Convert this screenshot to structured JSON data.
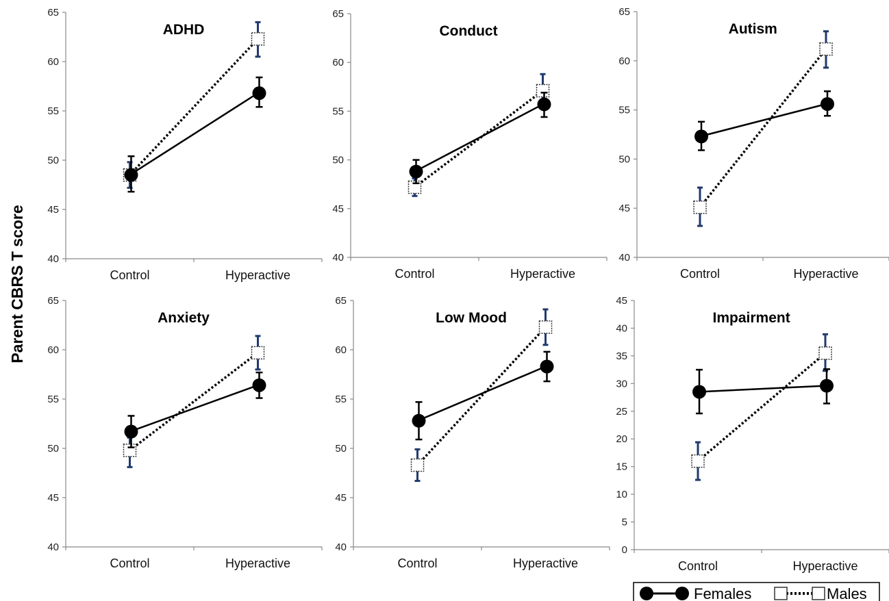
{
  "chart_data": {
    "ylabel": "Parent CBRS T score",
    "legend": {
      "placement": "bottom-right",
      "entries": [
        {
          "name": "Females",
          "color": "#000000",
          "marker": "filled-circle",
          "line": "solid"
        },
        {
          "name": "Males",
          "color": "#1f3a6e",
          "marker": "open-square",
          "line": "dotted"
        }
      ]
    },
    "panels": [
      {
        "type": "line",
        "title": "ADHD",
        "categories": [
          "Control",
          "Hyperactive"
        ],
        "ylim": [
          40,
          65
        ],
        "yticks": [
          40,
          45,
          50,
          55,
          60,
          65
        ],
        "series": [
          {
            "name": "Females",
            "values": [
              48.5,
              56.8
            ],
            "err_low": [
              46.8,
              55.4
            ],
            "err_high": [
              50.4,
              58.4
            ]
          },
          {
            "name": "Males",
            "values": [
              48.5,
              62.3
            ],
            "err_low": [
              47.2,
              60.5
            ],
            "err_high": [
              49.8,
              64.0
            ]
          }
        ]
      },
      {
        "type": "line",
        "title": "Conduct",
        "categories": [
          "Control",
          "Hyperactive"
        ],
        "ylim": [
          40,
          65
        ],
        "yticks": [
          40,
          45,
          50,
          55,
          60,
          65
        ],
        "series": [
          {
            "name": "Females",
            "values": [
              48.8,
              55.7
            ],
            "err_low": [
              47.6,
              54.4
            ],
            "err_high": [
              50.0,
              56.9
            ]
          },
          {
            "name": "Males",
            "values": [
              47.2,
              57.1
            ],
            "err_low": [
              46.3,
              55.4
            ],
            "err_high": [
              48.1,
              58.8
            ]
          }
        ]
      },
      {
        "type": "line",
        "title": "Autism",
        "categories": [
          "Control",
          "Hyperactive"
        ],
        "ylim": [
          40,
          65
        ],
        "yticks": [
          40,
          45,
          50,
          55,
          60,
          65
        ],
        "series": [
          {
            "name": "Females",
            "values": [
              52.3,
              55.6
            ],
            "err_low": [
              50.9,
              54.4
            ],
            "err_high": [
              53.8,
              56.9
            ]
          },
          {
            "name": "Males",
            "values": [
              45.1,
              61.2
            ],
            "err_low": [
              43.2,
              59.3
            ],
            "err_high": [
              47.1,
              63.0
            ]
          }
        ]
      },
      {
        "type": "line",
        "title": "Anxiety",
        "categories": [
          "Control",
          "Hyperactive"
        ],
        "ylim": [
          40,
          65
        ],
        "yticks": [
          40,
          45,
          50,
          55,
          60,
          65
        ],
        "series": [
          {
            "name": "Females",
            "values": [
              51.7,
              56.4
            ],
            "err_low": [
              50.1,
              55.1
            ],
            "err_high": [
              53.3,
              57.7
            ]
          },
          {
            "name": "Males",
            "values": [
              49.8,
              59.7
            ],
            "err_low": [
              48.1,
              58.0
            ],
            "err_high": [
              51.1,
              61.4
            ]
          }
        ]
      },
      {
        "type": "line",
        "title": "Low Mood",
        "categories": [
          "Control",
          "Hyperactive"
        ],
        "ylim": [
          40,
          65
        ],
        "yticks": [
          40,
          45,
          50,
          55,
          60,
          65
        ],
        "series": [
          {
            "name": "Females",
            "values": [
              52.8,
              58.3
            ],
            "err_low": [
              50.9,
              56.8
            ],
            "err_high": [
              54.7,
              59.8
            ]
          },
          {
            "name": "Males",
            "values": [
              48.3,
              62.3
            ],
            "err_low": [
              46.7,
              60.5
            ],
            "err_high": [
              49.9,
              64.1
            ]
          }
        ]
      },
      {
        "type": "line",
        "title": "Impairment",
        "categories": [
          "Control",
          "Hyperactive"
        ],
        "ylim": [
          0,
          45
        ],
        "yticks": [
          0,
          5,
          10,
          15,
          20,
          25,
          30,
          35,
          40,
          45
        ],
        "series": [
          {
            "name": "Females",
            "values": [
              28.5,
              29.6
            ],
            "err_low": [
              24.6,
              26.4
            ],
            "err_high": [
              32.5,
              32.6
            ]
          },
          {
            "name": "Males",
            "values": [
              16.0,
              35.5
            ],
            "err_low": [
              12.6,
              32.3
            ],
            "err_high": [
              19.4,
              38.9
            ]
          }
        ]
      }
    ]
  }
}
